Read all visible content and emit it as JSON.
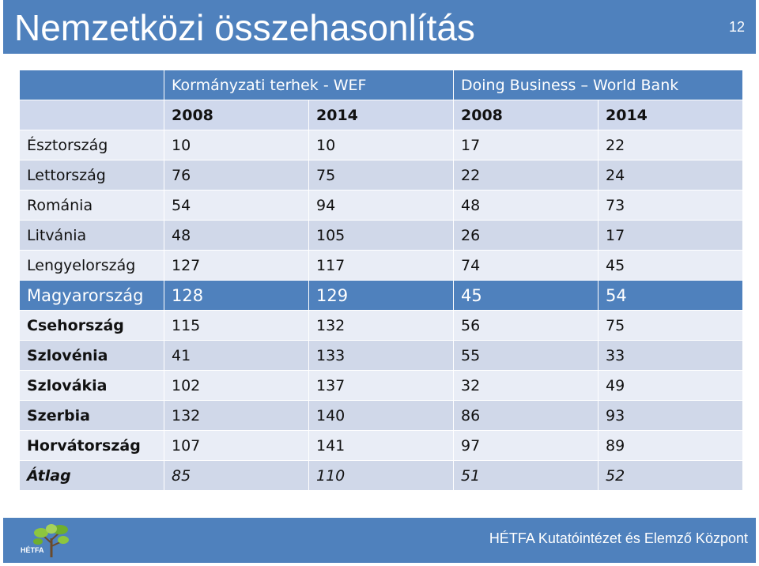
{
  "header": {
    "title": "Nemzetközi összehasonlítás",
    "slide_number": "12"
  },
  "table": {
    "group_headers": [
      "Kormányzati terhek - WEF",
      "Doing Business – World Bank"
    ],
    "year_headers": [
      "2008",
      "2014",
      "2008",
      "2014"
    ],
    "rows": [
      {
        "country": "Észtország",
        "values": [
          "10",
          "10",
          "17",
          "22"
        ]
      },
      {
        "country": "Lettország",
        "values": [
          "76",
          "75",
          "22",
          "24"
        ]
      },
      {
        "country": "Románia",
        "values": [
          "54",
          "94",
          "48",
          "73"
        ]
      },
      {
        "country": "Litvánia",
        "values": [
          "48",
          "105",
          "26",
          "17"
        ]
      },
      {
        "country": "Lengyelország",
        "values": [
          "127",
          "117",
          "74",
          "45"
        ]
      },
      {
        "country": "Magyarország",
        "values": [
          "128",
          "129",
          "45",
          "54"
        ]
      },
      {
        "country": "Csehország",
        "values": [
          "115",
          "132",
          "56",
          "75"
        ]
      },
      {
        "country": "Szlovénia",
        "values": [
          "41",
          "133",
          "55",
          "33"
        ]
      },
      {
        "country": "Szlovákia",
        "values": [
          "102",
          "137",
          "32",
          "49"
        ]
      },
      {
        "country": "Szerbia",
        "values": [
          "132",
          "140",
          "86",
          "93"
        ]
      },
      {
        "country": "Horvátország",
        "values": [
          "107",
          "141",
          "97",
          "89"
        ]
      },
      {
        "country": "Átlag",
        "values": [
          "85",
          "110",
          "51",
          "52"
        ]
      }
    ]
  },
  "footer": {
    "organization": "HÉTFA Kutatóintézet és Elemző Központ",
    "logo_text": "HÉTFA"
  },
  "colors": {
    "accent": "#4f81bd",
    "row_light": "#e9edf6",
    "row_dark": "#d0d8e9"
  }
}
